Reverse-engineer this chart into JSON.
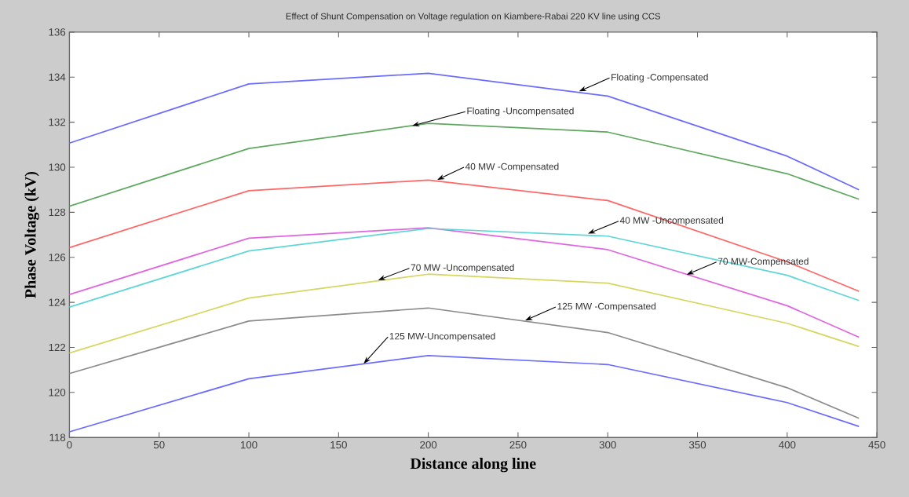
{
  "chart_data": {
    "type": "line",
    "title": "Effect of Shunt Compensation on Voltage regulation on Kiambere-Rabai 220 KV line using CCS",
    "xlabel": "Distance along line",
    "ylabel": "Phase Voltage (kV)",
    "x": [
      0,
      100,
      200,
      300,
      400,
      440
    ],
    "series": [
      {
        "color": "#6b6bff",
        "values": [
          131.07,
          133.7,
          134.17,
          133.16,
          130.49,
          129.0
        ]
      },
      {
        "color": "#5fa85f",
        "values": [
          128.27,
          130.83,
          131.95,
          131.56,
          129.71,
          128.58
        ]
      },
      {
        "color": "#ff6666",
        "values": [
          126.43,
          128.96,
          129.43,
          128.52,
          125.8,
          124.49
        ]
      },
      {
        "color": "#e066e0",
        "values": [
          124.35,
          126.85,
          127.31,
          126.34,
          123.85,
          122.45
        ]
      },
      {
        "color": "#5fd6d6",
        "values": [
          123.79,
          126.28,
          127.28,
          126.94,
          125.2,
          124.08
        ]
      },
      {
        "color": "#d6d660",
        "values": [
          121.75,
          124.19,
          125.25,
          124.85,
          123.07,
          122.04
        ]
      },
      {
        "color": "#8c8c8c",
        "values": [
          120.84,
          123.17,
          123.75,
          122.66,
          120.21,
          118.85
        ]
      },
      {
        "color": "#6b6bff",
        "values": [
          118.25,
          120.61,
          121.64,
          121.24,
          119.55,
          118.49
        ]
      }
    ],
    "annotations": [
      {
        "text": "Floating -Compensated",
        "x": 284,
        "y": 133.37
      },
      {
        "text": "Floating -Uncompensated",
        "x": 191,
        "y": 131.84
      },
      {
        "text": "40 MW -Compensated",
        "x": 205,
        "y": 129.44
      },
      {
        "text": "40 MW -Uncompensated",
        "x": 289,
        "y": 127.05
      },
      {
        "text": "70 MW-Compensated",
        "x": 344,
        "y": 125.23
      },
      {
        "text": "70 MW -Uncompensated",
        "x": 172,
        "y": 124.99
      },
      {
        "text": "125 MW -Compensated",
        "x": 254,
        "y": 123.2
      },
      {
        "text": "125 MW-Uncompensated",
        "x": 164,
        "y": 121.28
      }
    ],
    "xlim": [
      0,
      450
    ],
    "xticks": [
      0,
      50,
      100,
      150,
      200,
      250,
      300,
      350,
      400,
      450
    ],
    "ylim": [
      118,
      136
    ],
    "yticks": [
      118,
      120,
      122,
      124,
      126,
      128,
      130,
      132,
      134,
      136
    ],
    "grid": false,
    "marker": "none",
    "line_style": "solid"
  }
}
